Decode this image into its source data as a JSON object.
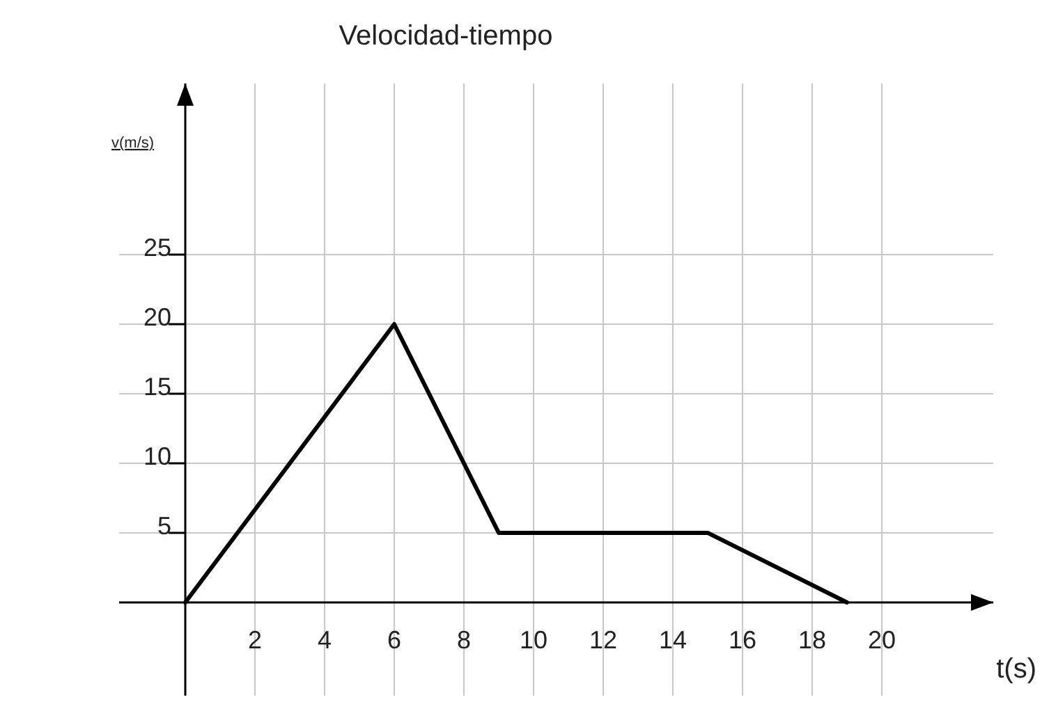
{
  "chart_data": {
    "type": "line",
    "title": "Velocidad-tiempo",
    "xlabel": "t(s)",
    "ylabel": "v(m/s)",
    "x": [
      0,
      6,
      9,
      15,
      19
    ],
    "series": [
      {
        "color": "#000000",
        "values": [
          0,
          20,
          5,
          5,
          0
        ]
      }
    ],
    "xlim": [
      -1.9,
      23.2
    ],
    "ylim": [
      -6.7,
      37.3
    ],
    "xticks": [
      2,
      4,
      6,
      8,
      10,
      12,
      14,
      16,
      18,
      20
    ],
    "yticks": [
      5,
      10,
      15,
      20,
      25
    ],
    "grid": true,
    "marker": "none",
    "line_style": "solid"
  }
}
